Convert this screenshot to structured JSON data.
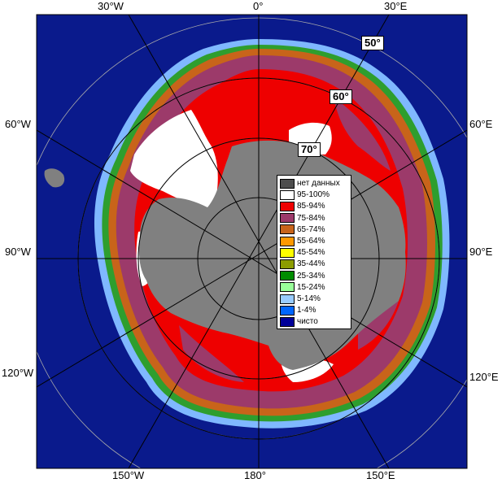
{
  "map": {
    "lon_labels": {
      "top_30w": "30°W",
      "top_0": "0°",
      "top_30e": "30°E",
      "left_60w": "60°W",
      "left_90w": "90°W",
      "left_120w": "120°W",
      "right_60e": "60°E",
      "right_90e": "90°E",
      "right_120e": "120°E",
      "bottom_150w": "150°W",
      "bottom_180": "180°",
      "bottom_150e": "150°E"
    },
    "lat_labels": {
      "lat50": "50°",
      "lat60": "60°",
      "lat70": "70°"
    },
    "colors": {
      "background": "#0a1a8c",
      "land": "#808080",
      "border": "#000000",
      "grid": "#aaaaaa"
    }
  },
  "legend": {
    "items": [
      {
        "label": "нет данных",
        "color": "#4d4d4d"
      },
      {
        "label": "95-100%",
        "color": "#ffffff"
      },
      {
        "label": "85-94%",
        "color": "#ee0000"
      },
      {
        "label": "75-84%",
        "color": "#9c3a6a"
      },
      {
        "label": "65-74%",
        "color": "#c8641a"
      },
      {
        "label": "55-64%",
        "color": "#ff9900"
      },
      {
        "label": "45-54%",
        "color": "#ffff00"
      },
      {
        "label": "35-44%",
        "color": "#8c9c00"
      },
      {
        "label": "25-34%",
        "color": "#008c00"
      },
      {
        "label": "15-24%",
        "color": "#99ff99"
      },
      {
        "label": "5-14%",
        "color": "#99ccff"
      },
      {
        "label": "1-4%",
        "color": "#0066ff"
      },
      {
        "label": "чисто",
        "color": "#000099"
      }
    ]
  }
}
